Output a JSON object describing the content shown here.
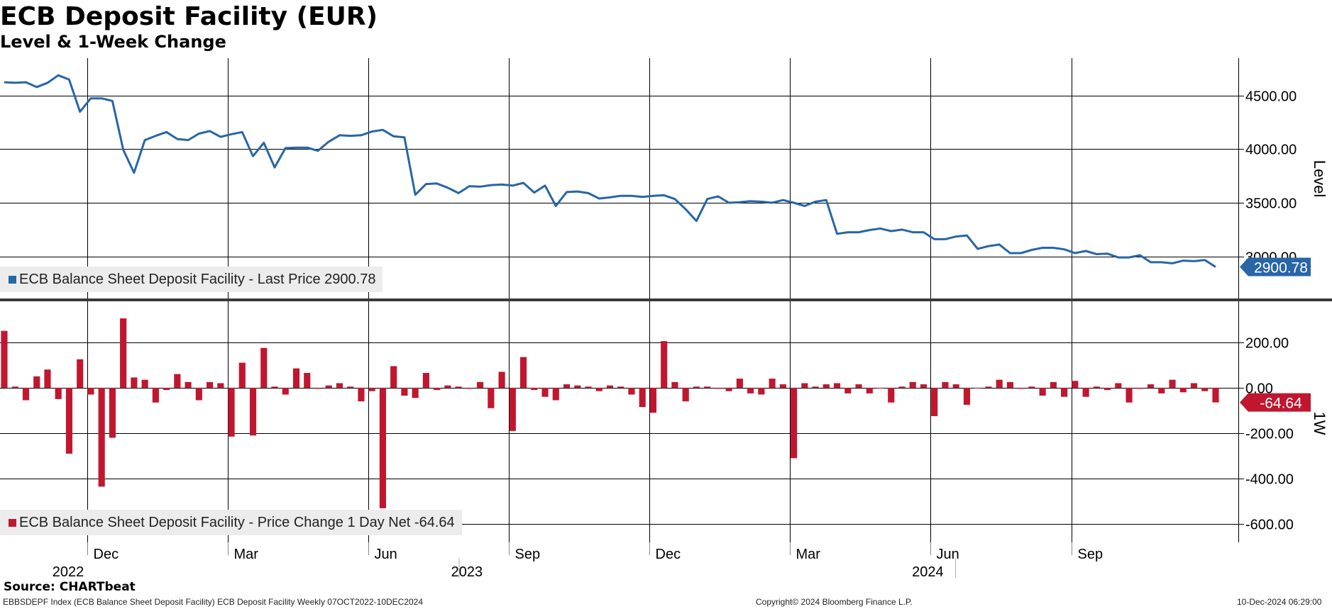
{
  "header": {
    "title": "ECB Deposit Facility (EUR)",
    "subtitle": "Level & 1-Week Change"
  },
  "footer": {
    "source": "Source: CHARTbeat",
    "ticker_line": "EBBSDEPF Index (ECB Balance Sheet Deposit Facility) ECB Deposit Facility  Weekly 07OCT2022-10DEC2024",
    "copyright": "Copyright© 2024 Bloomberg Finance L.P.",
    "timestamp": "10-Dec-2024 06:29:00"
  },
  "colors": {
    "line": "#2866a6",
    "bars": "#c0172f",
    "grid": "#000000",
    "legend_bg": "#ececec",
    "divider": "#3a3a3a"
  },
  "chart_data": [
    {
      "type": "line",
      "axis_title": "Level",
      "ylim": [
        2600,
        4850
      ],
      "yticks": [
        3000,
        3500,
        4000,
        4500
      ],
      "ytick_labels": [
        "3000.00",
        "3500.00",
        "4000.00",
        "4500.00"
      ],
      "legend": "ECB Balance Sheet Deposit Facility - Last Price 2900.78",
      "last_value_label": "2900.78",
      "series": [
        {
          "name": "ECB Balance Sheet Deposit Facility - Last Price",
          "values": [
            4625,
            4620,
            4625,
            4580,
            4620,
            4690,
            4650,
            4350,
            4475,
            4475,
            4450,
            3995,
            3780,
            4085,
            4125,
            4160,
            4095,
            4085,
            4145,
            4170,
            4115,
            4140,
            4160,
            3935,
            4060,
            3830,
            4010,
            4015,
            4015,
            3985,
            4070,
            4130,
            4125,
            4130,
            4165,
            4180,
            4120,
            4110,
            3575,
            3675,
            3680,
            3640,
            3590,
            3655,
            3650,
            3665,
            3670,
            3660,
            3685,
            3595,
            3660,
            3470,
            3600,
            3605,
            3590,
            3540,
            3550,
            3565,
            3565,
            3555,
            3565,
            3570,
            3535,
            3440,
            3330,
            3535,
            3560,
            3500,
            3505,
            3515,
            3510,
            3500,
            3525,
            3500,
            3470,
            3510,
            3525,
            3210,
            3225,
            3225,
            3245,
            3260,
            3235,
            3250,
            3225,
            3225,
            3160,
            3160,
            3185,
            3195,
            3070,
            3095,
            3110,
            3030,
            3030,
            3060,
            3080,
            3080,
            3065,
            3030,
            3050,
            3020,
            3025,
            2990,
            2990,
            3010,
            2945,
            2945,
            2935,
            2960,
            2955,
            2965,
            2900.78
          ]
        }
      ]
    },
    {
      "type": "bar",
      "axis_title": "1W",
      "ylim": [
        -680,
        380
      ],
      "yticks": [
        -600,
        -400,
        -200,
        0,
        200
      ],
      "ytick_labels": [
        "-600.00",
        "-400.00",
        "-200.00",
        "0.00",
        "200.00"
      ],
      "legend": "ECB Balance Sheet Deposit Facility - Price Change 1 Day Net -64.64",
      "last_value_label": "-64.64",
      "series": [
        {
          "name": "ECB Balance Sheet Deposit Facility - Price Change 1 Day Net",
          "values": [
            250,
            5,
            -55,
            50,
            80,
            -50,
            -290,
            125,
            -30,
            -435,
            -220,
            305,
            45,
            35,
            -65,
            -10,
            60,
            25,
            -55,
            25,
            20,
            -215,
            110,
            -210,
            175,
            5,
            -30,
            85,
            65,
            -5,
            10,
            20,
            5,
            -60,
            -15,
            -530,
            95,
            -35,
            -45,
            65,
            -10,
            10,
            5,
            -5,
            25,
            -90,
            70,
            -190,
            135,
            -10,
            -40,
            -55,
            15,
            10,
            5,
            -15,
            10,
            5,
            -30,
            -85,
            -110,
            205,
            25,
            -60,
            5,
            5,
            -5,
            -15,
            40,
            -25,
            -30,
            40,
            15,
            -310,
            20,
            5,
            15,
            20,
            -25,
            15,
            -25,
            0,
            -65,
            5,
            25,
            15,
            -125,
            25,
            15,
            -75,
            0,
            5,
            35,
            25,
            -5,
            5,
            -35,
            25,
            -40,
            30,
            -40,
            5,
            -10,
            20,
            -65,
            -5,
            15,
            -25,
            35,
            -20,
            20,
            -15,
            -64.64
          ]
        }
      ]
    }
  ],
  "x_axis": {
    "month_labels": [
      "Dec",
      "Mar",
      "Jun",
      "Sep",
      "Dec",
      "Mar",
      "Jun",
      "Sep"
    ],
    "year_labels": [
      "2022",
      "2023",
      "2024"
    ]
  }
}
